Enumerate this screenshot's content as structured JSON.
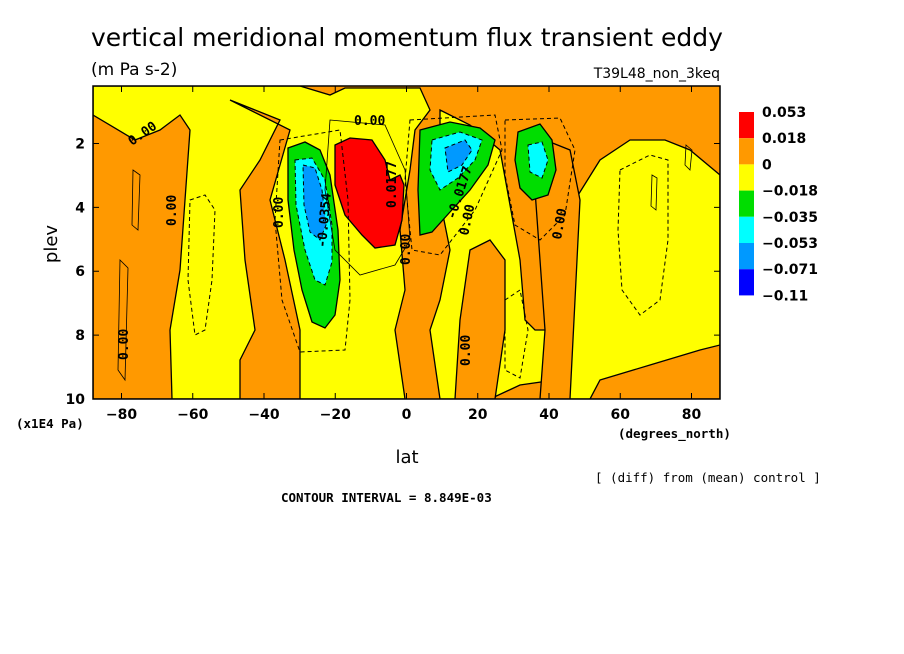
{
  "chart_data": {
    "type": "heatmap",
    "title": "vertical meridional momentum flux transient eddy",
    "units": "(m Pa s-2)",
    "run_label": "T39L48_non_3keq",
    "xlabel": "lat",
    "x_units": "(degrees_north)",
    "ylabel": "plev",
    "y_units": "(x1E4 Pa)",
    "xlim": [
      -88,
      88
    ],
    "ylim": [
      0.2,
      10
    ],
    "y_inverted": true,
    "x_ticks": [
      "-80",
      "-60",
      "-40",
      "-20",
      "0",
      "20",
      "40",
      "60",
      "80"
    ],
    "y_ticks": [
      "2",
      "4",
      "6",
      "8",
      "10"
    ],
    "contour_interval_text": "CONTOUR INTERVAL = 8.849E-03",
    "note": "[ (diff) from (mean) control ]",
    "legend": {
      "labels": [
        "0.053",
        "0.018",
        "0",
        "-0.018",
        "-0.035",
        "-0.053",
        "-0.071",
        "-0.11"
      ],
      "colors": [
        "#ff0000",
        "#ff9900",
        "#ffff00",
        "#00dd00",
        "#00ffff",
        "#0099ff",
        "#0000ff"
      ]
    },
    "colors": {
      "positive_strong": "#ff0000",
      "positive": "#ff9900",
      "near_zero": "#ffff00",
      "neg1": "#00dd00",
      "neg2": "#00ffff",
      "neg3": "#0099ff",
      "neg4": "#0000ff"
    },
    "contour_labels": [
      "0.00",
      "0.00",
      "0.00",
      "0.00",
      "0.00",
      "0.00",
      "0.00",
      "0.00",
      "-0.0354",
      "0.0177",
      "-0.0177"
    ]
  }
}
